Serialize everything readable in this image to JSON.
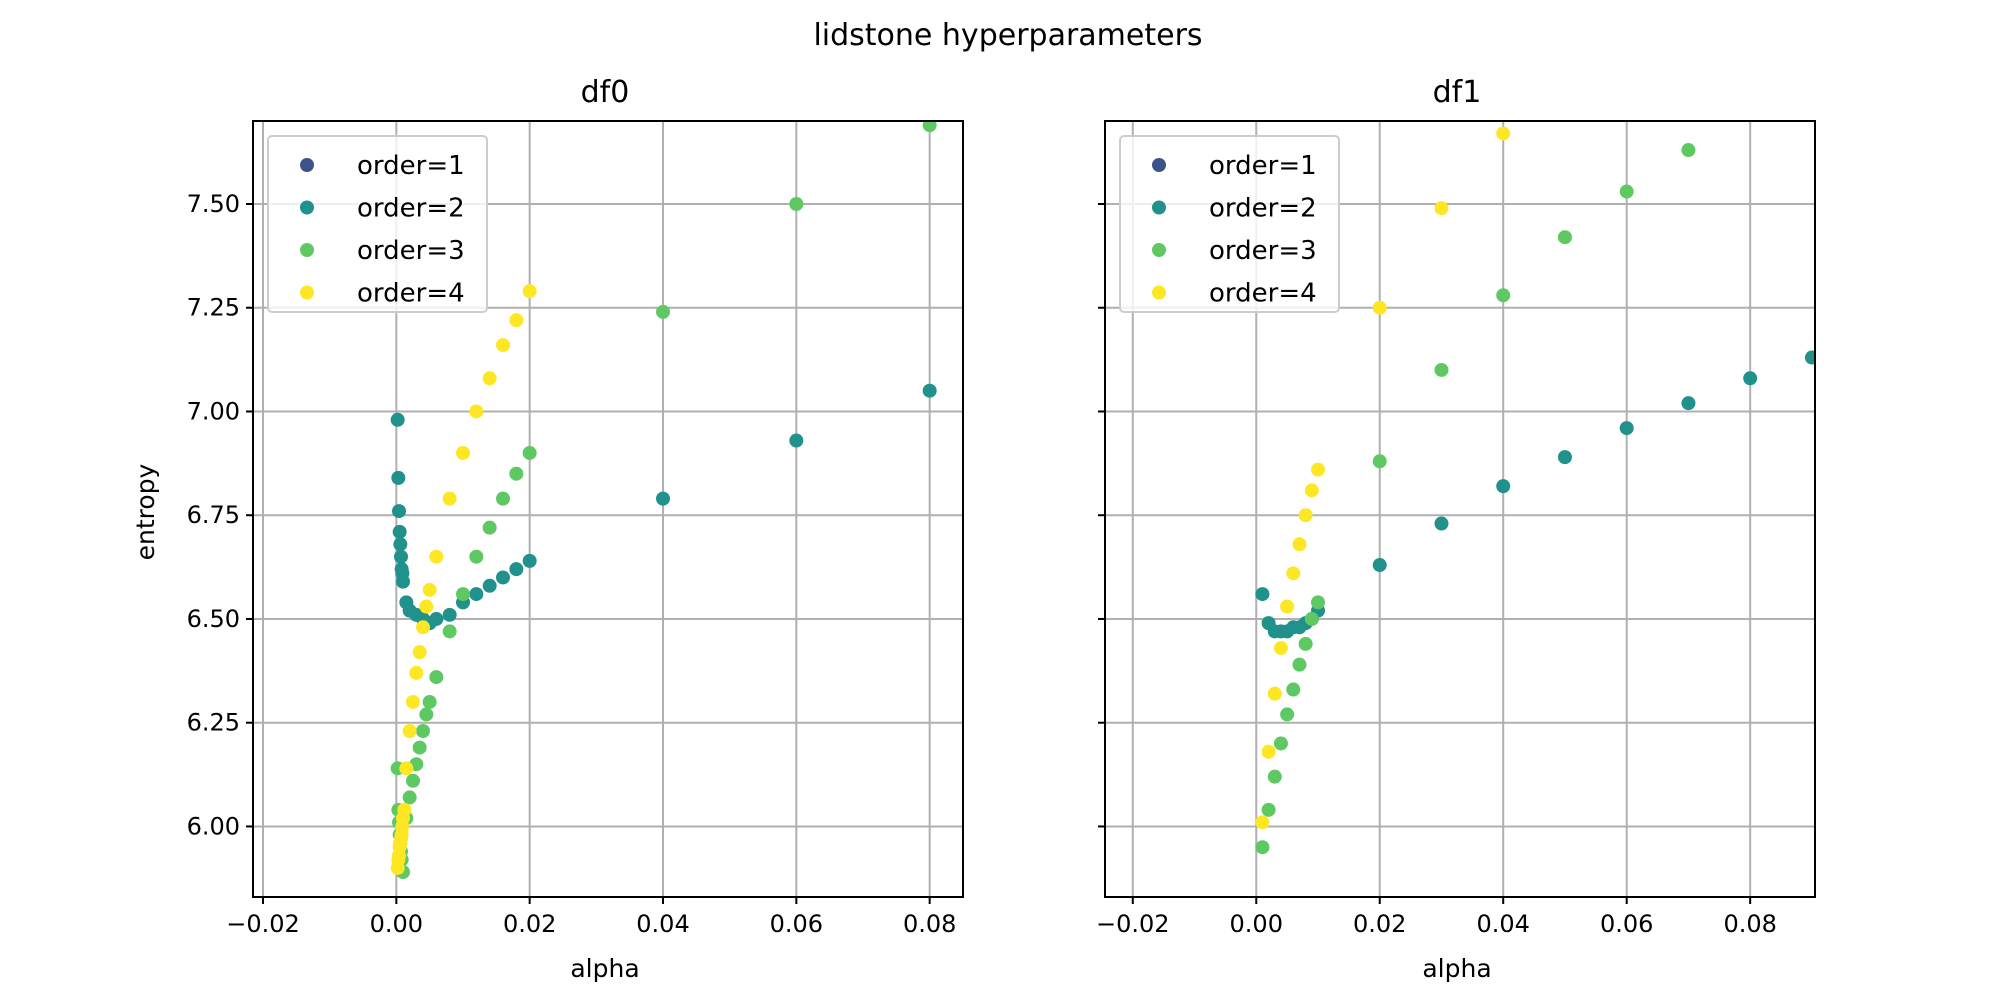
{
  "title": "lidstone hyperparameters",
  "colors": {
    "order=1": "#3b528b",
    "order=2": "#21918c",
    "order=3": "#5ec962",
    "order=4": "#fde725"
  },
  "chart_data": [
    {
      "type": "scatter",
      "title": "df0",
      "xlabel": "alpha",
      "ylabel": "entropy",
      "xlim": [
        -0.0215,
        0.085
      ],
      "ylim": [
        5.83,
        7.7
      ],
      "xticks": [
        -0.02,
        0.0,
        0.02,
        0.04,
        0.06,
        0.08
      ],
      "xtick_labels": [
        "−0.02",
        "0.00",
        "0.02",
        "0.04",
        "0.06",
        "0.08"
      ],
      "yticks": [
        6.0,
        6.25,
        6.5,
        6.75,
        7.0,
        7.25,
        7.5
      ],
      "ytick_labels": [
        "6.00",
        "6.25",
        "6.50",
        "6.75",
        "7.00",
        "7.25",
        "7.50"
      ],
      "grid": true,
      "legend": "upper left",
      "series": [
        {
          "name": "order=1",
          "points": []
        },
        {
          "name": "order=2",
          "points": [
            [
              0.0002,
              6.98
            ],
            [
              0.0003,
              6.84
            ],
            [
              0.0004,
              6.76
            ],
            [
              0.0005,
              6.71
            ],
            [
              0.0006,
              6.68
            ],
            [
              0.0007,
              6.65
            ],
            [
              0.0008,
              6.62
            ],
            [
              0.0009,
              6.61
            ],
            [
              0.001,
              6.59
            ],
            [
              0.0015,
              6.54
            ],
            [
              0.002,
              6.52
            ],
            [
              0.003,
              6.51
            ],
            [
              0.004,
              6.5
            ],
            [
              0.005,
              6.49
            ],
            [
              0.006,
              6.5
            ],
            [
              0.008,
              6.51
            ],
            [
              0.01,
              6.54
            ],
            [
              0.012,
              6.56
            ],
            [
              0.014,
              6.58
            ],
            [
              0.016,
              6.6
            ],
            [
              0.018,
              6.62
            ],
            [
              0.02,
              6.64
            ],
            [
              0.04,
              6.79
            ],
            [
              0.06,
              6.93
            ],
            [
              0.08,
              7.05
            ]
          ]
        },
        {
          "name": "order=3",
          "points": [
            [
              0.0002,
              6.14
            ],
            [
              0.0003,
              6.04
            ],
            [
              0.0004,
              6.01
            ],
            [
              0.0005,
              5.98
            ],
            [
              0.0006,
              5.96
            ],
            [
              0.0007,
              5.94
            ],
            [
              0.0008,
              5.92
            ],
            [
              0.001,
              5.89
            ],
            [
              0.0015,
              6.02
            ],
            [
              0.002,
              6.07
            ],
            [
              0.0025,
              6.11
            ],
            [
              0.003,
              6.15
            ],
            [
              0.0035,
              6.19
            ],
            [
              0.004,
              6.23
            ],
            [
              0.0045,
              6.27
            ],
            [
              0.005,
              6.3
            ],
            [
              0.006,
              6.36
            ],
            [
              0.008,
              6.47
            ],
            [
              0.01,
              6.56
            ],
            [
              0.012,
              6.65
            ],
            [
              0.014,
              6.72
            ],
            [
              0.016,
              6.79
            ],
            [
              0.018,
              6.85
            ],
            [
              0.02,
              6.9
            ],
            [
              0.04,
              7.24
            ],
            [
              0.06,
              7.5
            ],
            [
              0.08,
              7.69
            ]
          ]
        },
        {
          "name": "order=4",
          "points": [
            [
              0.0002,
              5.9
            ],
            [
              0.0003,
              5.92
            ],
            [
              0.0004,
              5.93
            ],
            [
              0.0005,
              5.95
            ],
            [
              0.0006,
              5.96
            ],
            [
              0.0007,
              5.97
            ],
            [
              0.0008,
              5.98
            ],
            [
              0.0009,
              6.0
            ],
            [
              0.001,
              6.02
            ],
            [
              0.0012,
              6.04
            ],
            [
              0.0015,
              6.14
            ],
            [
              0.002,
              6.23
            ],
            [
              0.0025,
              6.3
            ],
            [
              0.003,
              6.37
            ],
            [
              0.0035,
              6.42
            ],
            [
              0.004,
              6.48
            ],
            [
              0.0045,
              6.53
            ],
            [
              0.005,
              6.57
            ],
            [
              0.006,
              6.65
            ],
            [
              0.008,
              6.79
            ],
            [
              0.01,
              6.9
            ],
            [
              0.012,
              7.0
            ],
            [
              0.014,
              7.08
            ],
            [
              0.016,
              7.16
            ],
            [
              0.018,
              7.22
            ],
            [
              0.02,
              7.29
            ]
          ]
        }
      ]
    },
    {
      "type": "scatter",
      "title": "df1",
      "xlabel": "alpha",
      "ylabel": "",
      "xlim": [
        -0.0245,
        0.0905
      ],
      "ylim": [
        5.83,
        7.7
      ],
      "xticks": [
        -0.02,
        0.0,
        0.02,
        0.04,
        0.06,
        0.08
      ],
      "xtick_labels": [
        "−0.02",
        "0.00",
        "0.02",
        "0.04",
        "0.06",
        "0.08"
      ],
      "yticks": [
        6.0,
        6.25,
        6.5,
        6.75,
        7.0,
        7.25,
        7.5
      ],
      "ytick_labels": [],
      "grid": true,
      "legend": "upper left",
      "series": [
        {
          "name": "order=1",
          "points": []
        },
        {
          "name": "order=2",
          "points": [
            [
              0.001,
              6.56
            ],
            [
              0.002,
              6.49
            ],
            [
              0.003,
              6.47
            ],
            [
              0.004,
              6.47
            ],
            [
              0.005,
              6.47
            ],
            [
              0.006,
              6.48
            ],
            [
              0.007,
              6.48
            ],
            [
              0.008,
              6.49
            ],
            [
              0.009,
              6.5
            ],
            [
              0.01,
              6.52
            ],
            [
              0.02,
              6.63
            ],
            [
              0.03,
              6.73
            ],
            [
              0.04,
              6.82
            ],
            [
              0.05,
              6.89
            ],
            [
              0.06,
              6.96
            ],
            [
              0.07,
              7.02
            ],
            [
              0.08,
              7.08
            ],
            [
              0.09,
              7.13
            ]
          ]
        },
        {
          "name": "order=3",
          "points": [
            [
              0.001,
              5.95
            ],
            [
              0.002,
              6.04
            ],
            [
              0.003,
              6.12
            ],
            [
              0.004,
              6.2
            ],
            [
              0.005,
              6.27
            ],
            [
              0.006,
              6.33
            ],
            [
              0.007,
              6.39
            ],
            [
              0.008,
              6.44
            ],
            [
              0.009,
              6.5
            ],
            [
              0.01,
              6.54
            ],
            [
              0.02,
              6.88
            ],
            [
              0.03,
              7.1
            ],
            [
              0.04,
              7.28
            ],
            [
              0.05,
              7.42
            ],
            [
              0.06,
              7.53
            ],
            [
              0.07,
              7.63
            ]
          ]
        },
        {
          "name": "order=4",
          "points": [
            [
              0.001,
              6.01
            ],
            [
              0.002,
              6.18
            ],
            [
              0.003,
              6.32
            ],
            [
              0.004,
              6.43
            ],
            [
              0.005,
              6.53
            ],
            [
              0.006,
              6.61
            ],
            [
              0.007,
              6.68
            ],
            [
              0.008,
              6.75
            ],
            [
              0.009,
              6.81
            ],
            [
              0.01,
              6.86
            ],
            [
              0.02,
              7.25
            ],
            [
              0.03,
              7.49
            ],
            [
              0.04,
              7.67
            ]
          ]
        }
      ]
    }
  ]
}
